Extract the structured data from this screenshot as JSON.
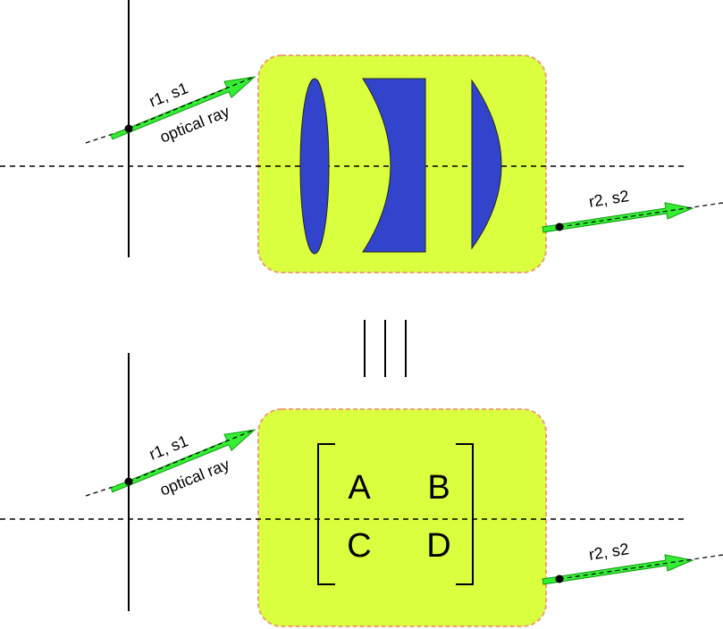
{
  "top_panel": {
    "input_label": "r1, s1",
    "ray_label": "optical ray",
    "output_label": "r2, s2"
  },
  "equivalence_symbol": "|||",
  "bottom_panel": {
    "input_label": "r1, s1",
    "ray_label": "optical ray",
    "output_label": "r2, s2",
    "matrix": {
      "a": "A",
      "b": "B",
      "c": "C",
      "d": "D"
    }
  },
  "colors": {
    "box_fill": "#d9ff3f",
    "box_border": "#f0a070",
    "lens_fill": "#3344cc",
    "ray_fill": "#33ee33",
    "line": "#000000"
  }
}
